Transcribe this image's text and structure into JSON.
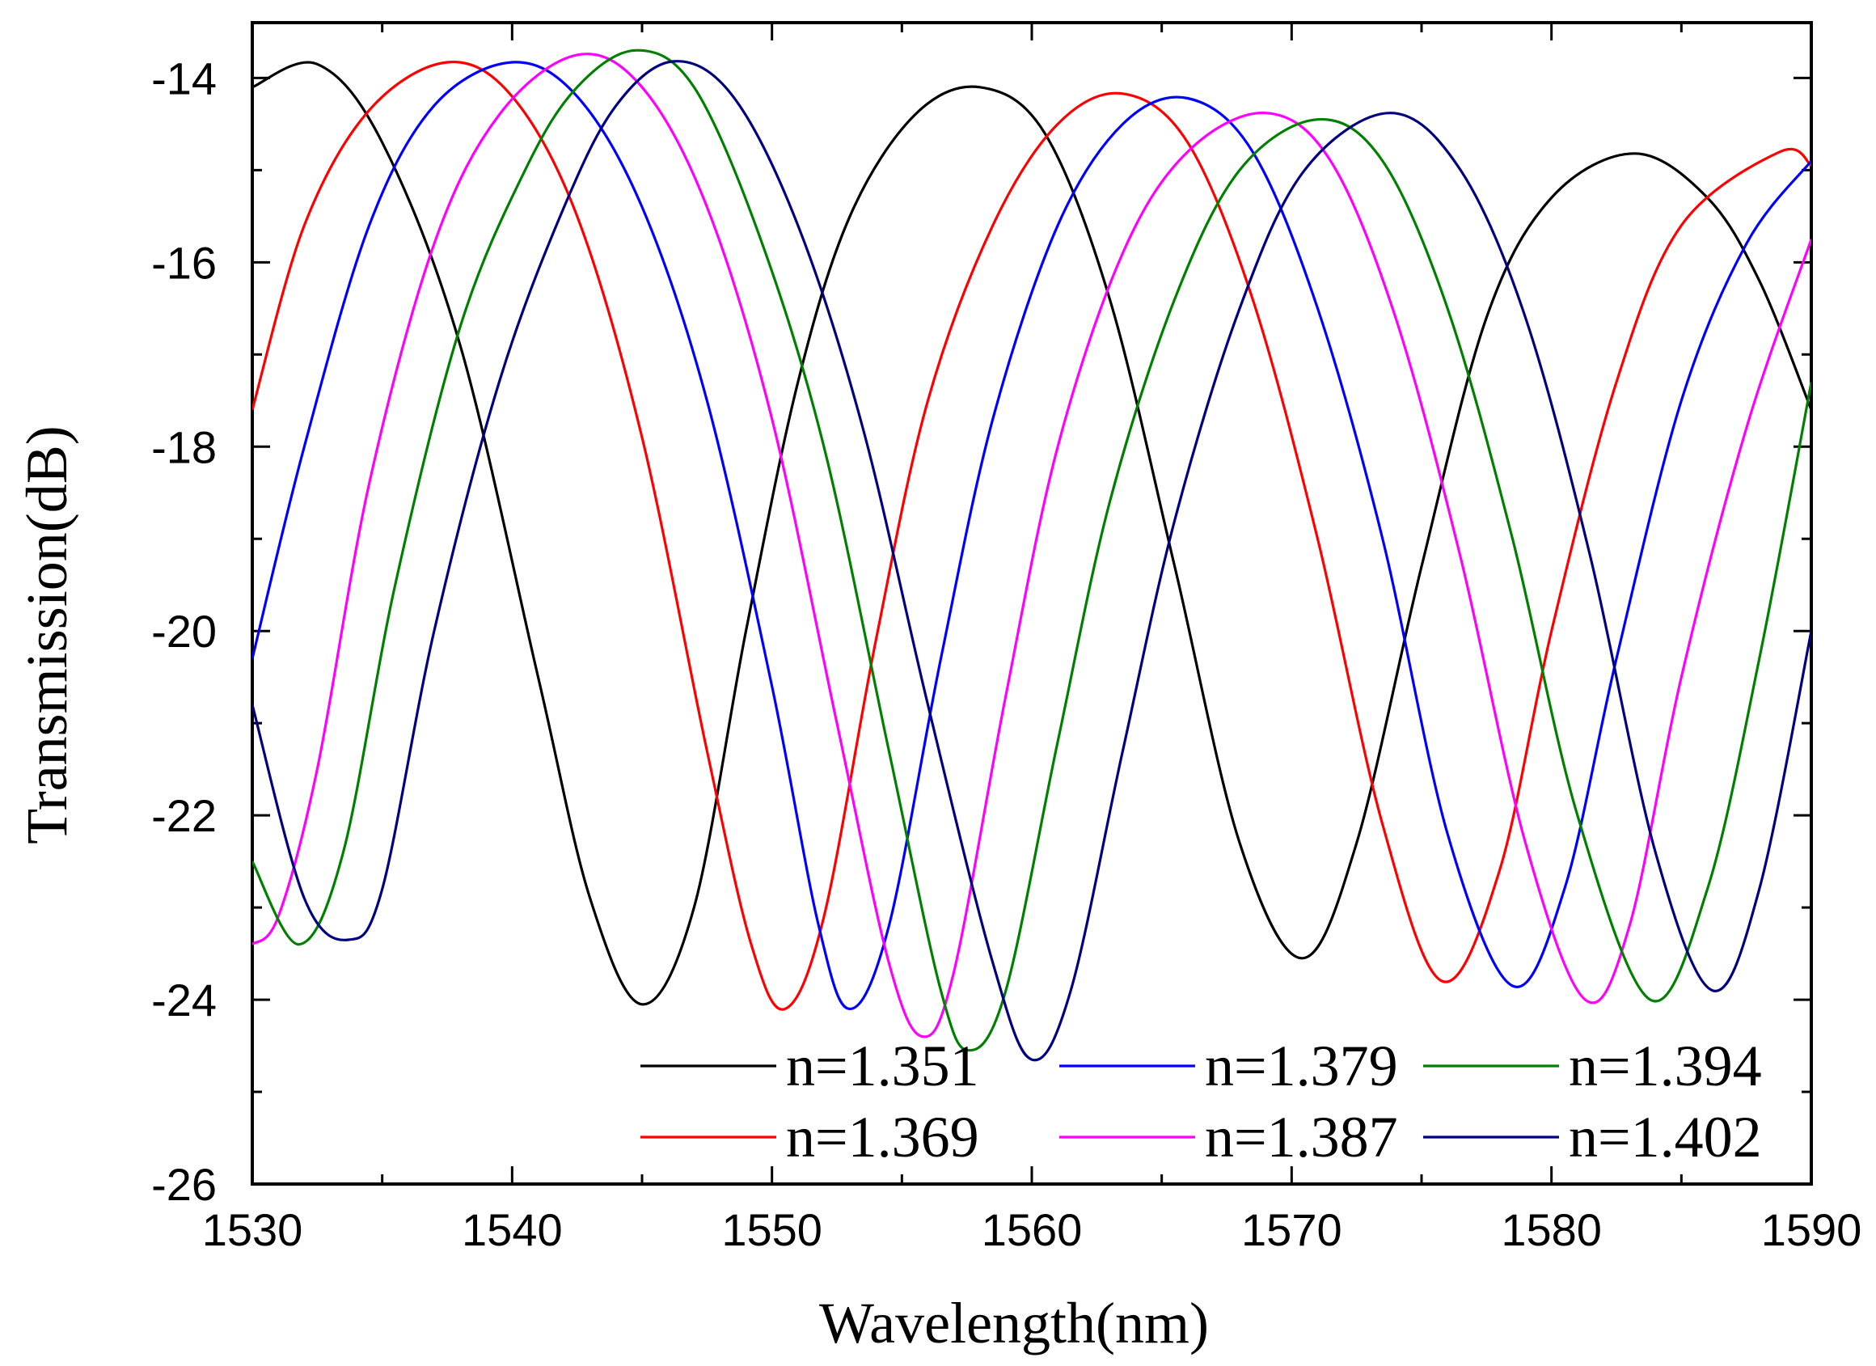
{
  "chart_data": {
    "type": "line",
    "title": "",
    "xlabel": "Wavelength(nm)",
    "ylabel": "Transmission(dB)",
    "xlim": [
      1530,
      1590
    ],
    "ylim": [
      -26,
      -13.4
    ],
    "xticks": [
      1530,
      1540,
      1550,
      1560,
      1570,
      1580,
      1590
    ],
    "xtick_labels": [
      "1530",
      "1540",
      "1550",
      "1560",
      "1570",
      "1580",
      "1590"
    ],
    "yticks": [
      -14,
      -16,
      -18,
      -20,
      -22,
      -24,
      -26
    ],
    "ytick_labels": [
      "-14",
      "-16",
      "-18",
      "-20",
      "-22",
      "-24",
      "-26"
    ],
    "grid": false,
    "legend_position": "bottom-right",
    "series": [
      {
        "name": "n=1.351",
        "color": "#000000",
        "points": [
          [
            1530,
            -14.1
          ],
          [
            1532.5,
            -13.85
          ],
          [
            1535,
            -14.7
          ],
          [
            1538,
            -16.9
          ],
          [
            1541,
            -20.5
          ],
          [
            1543,
            -22.9
          ],
          [
            1545,
            -24.05
          ],
          [
            1547,
            -23.0
          ],
          [
            1549,
            -20.0
          ],
          [
            1551,
            -17.3
          ],
          [
            1553,
            -15.5
          ],
          [
            1555.5,
            -14.4
          ],
          [
            1558,
            -14.1
          ],
          [
            1560.5,
            -14.6
          ],
          [
            1563,
            -16.4
          ],
          [
            1565.5,
            -19.3
          ],
          [
            1568,
            -22.3
          ],
          [
            1570.4,
            -23.55
          ],
          [
            1572.5,
            -22.3
          ],
          [
            1575,
            -19.3
          ],
          [
            1577.5,
            -16.6
          ],
          [
            1580,
            -15.3
          ],
          [
            1583.2,
            -14.82
          ],
          [
            1586,
            -15.3
          ],
          [
            1588,
            -16.2
          ],
          [
            1590,
            -17.6
          ]
        ]
      },
      {
        "name": "n=1.369",
        "color": "#ff0000",
        "points": [
          [
            1530,
            -17.6
          ],
          [
            1532,
            -15.6
          ],
          [
            1534.5,
            -14.35
          ],
          [
            1537.5,
            -13.83
          ],
          [
            1540,
            -14.2
          ],
          [
            1542.5,
            -15.5
          ],
          [
            1545,
            -17.9
          ],
          [
            1547.5,
            -21.3
          ],
          [
            1549.2,
            -23.4
          ],
          [
            1550.5,
            -24.1
          ],
          [
            1552,
            -23.1
          ],
          [
            1554,
            -20.1
          ],
          [
            1556,
            -17.5
          ],
          [
            1558.5,
            -15.6
          ],
          [
            1561,
            -14.5
          ],
          [
            1563.5,
            -14.17
          ],
          [
            1566,
            -14.7
          ],
          [
            1568.5,
            -16.4
          ],
          [
            1571,
            -19.0
          ],
          [
            1573.5,
            -22.1
          ],
          [
            1575.8,
            -23.8
          ],
          [
            1578,
            -22.6
          ],
          [
            1580,
            -20.0
          ],
          [
            1582.5,
            -17.3
          ],
          [
            1585,
            -15.6
          ],
          [
            1588.8,
            -14.8
          ],
          [
            1590,
            -14.95
          ]
        ]
      },
      {
        "name": "n=1.379",
        "color": "#0000ff",
        "points": [
          [
            1530,
            -20.3
          ],
          [
            1532,
            -18.0
          ],
          [
            1534.5,
            -15.6
          ],
          [
            1537,
            -14.3
          ],
          [
            1540,
            -13.83
          ],
          [
            1542.5,
            -14.2
          ],
          [
            1545,
            -15.4
          ],
          [
            1547.5,
            -17.5
          ],
          [
            1550,
            -20.6
          ],
          [
            1551.8,
            -23.2
          ],
          [
            1553,
            -24.1
          ],
          [
            1554.5,
            -23.2
          ],
          [
            1556.5,
            -20.3
          ],
          [
            1558.5,
            -17.7
          ],
          [
            1561,
            -15.6
          ],
          [
            1563.5,
            -14.5
          ],
          [
            1566,
            -14.22
          ],
          [
            1568.5,
            -14.8
          ],
          [
            1571,
            -16.5
          ],
          [
            1573.5,
            -19.0
          ],
          [
            1576,
            -22.2
          ],
          [
            1578.5,
            -23.85
          ],
          [
            1580.5,
            -22.8
          ],
          [
            1582.5,
            -20.3
          ],
          [
            1585,
            -17.5
          ],
          [
            1587.5,
            -15.8
          ],
          [
            1590,
            -14.9
          ]
        ]
      },
      {
        "name": "n=1.387",
        "color": "#ff00ff",
        "points": [
          [
            1530,
            -23.4
          ],
          [
            1531,
            -23.1
          ],
          [
            1532.5,
            -21.5
          ],
          [
            1534.5,
            -18.4
          ],
          [
            1537,
            -15.8
          ],
          [
            1539.5,
            -14.4
          ],
          [
            1542.5,
            -13.75
          ],
          [
            1545,
            -14.1
          ],
          [
            1547.5,
            -15.4
          ],
          [
            1550,
            -17.7
          ],
          [
            1552.5,
            -21.0
          ],
          [
            1554.5,
            -23.6
          ],
          [
            1555.8,
            -24.4
          ],
          [
            1557,
            -23.7
          ],
          [
            1559,
            -20.7
          ],
          [
            1561,
            -18.0
          ],
          [
            1563.5,
            -15.9
          ],
          [
            1566,
            -14.8
          ],
          [
            1569,
            -14.38
          ],
          [
            1571.5,
            -14.9
          ],
          [
            1574,
            -16.6
          ],
          [
            1576.5,
            -19.2
          ],
          [
            1579,
            -22.3
          ],
          [
            1581.3,
            -24.0
          ],
          [
            1583,
            -23.2
          ],
          [
            1585,
            -20.5
          ],
          [
            1587.5,
            -17.8
          ],
          [
            1590,
            -15.75
          ]
        ]
      },
      {
        "name": "n=1.394",
        "color": "#008000",
        "points": [
          [
            1530,
            -22.5
          ],
          [
            1531.8,
            -23.4
          ],
          [
            1533.5,
            -22.4
          ],
          [
            1535.5,
            -19.5
          ],
          [
            1538,
            -16.7
          ],
          [
            1540.5,
            -15.0
          ],
          [
            1542.5,
            -14.1
          ],
          [
            1544.8,
            -13.7
          ],
          [
            1547,
            -14.1
          ],
          [
            1549.5,
            -15.7
          ],
          [
            1552,
            -18.0
          ],
          [
            1554.5,
            -21.3
          ],
          [
            1556.5,
            -23.9
          ],
          [
            1557.6,
            -24.55
          ],
          [
            1559,
            -23.9
          ],
          [
            1561,
            -21.2
          ],
          [
            1563,
            -18.6
          ],
          [
            1565.5,
            -16.4
          ],
          [
            1568,
            -15.0
          ],
          [
            1571,
            -14.45
          ],
          [
            1573.5,
            -14.9
          ],
          [
            1576,
            -16.5
          ],
          [
            1578.5,
            -19.0
          ],
          [
            1581,
            -22.0
          ],
          [
            1583.8,
            -24.0
          ],
          [
            1586,
            -22.8
          ],
          [
            1588,
            -20.3
          ],
          [
            1590,
            -17.3
          ]
        ]
      },
      {
        "name": "n=1.402",
        "color": "#000080",
        "points": [
          [
            1530,
            -20.8
          ],
          [
            1532,
            -22.9
          ],
          [
            1533.7,
            -23.35
          ],
          [
            1535,
            -22.8
          ],
          [
            1537,
            -20.0
          ],
          [
            1539.5,
            -17.3
          ],
          [
            1542,
            -15.4
          ],
          [
            1544,
            -14.3
          ],
          [
            1546.2,
            -13.82
          ],
          [
            1548.5,
            -14.2
          ],
          [
            1551,
            -15.6
          ],
          [
            1553.5,
            -17.8
          ],
          [
            1556,
            -20.8
          ],
          [
            1558.5,
            -23.6
          ],
          [
            1560,
            -24.65
          ],
          [
            1561.5,
            -23.9
          ],
          [
            1563.5,
            -21.3
          ],
          [
            1565.5,
            -18.8
          ],
          [
            1568,
            -16.5
          ],
          [
            1570.5,
            -15.0
          ],
          [
            1573.8,
            -14.38
          ],
          [
            1576.5,
            -15.0
          ],
          [
            1579,
            -16.6
          ],
          [
            1581.5,
            -19.2
          ],
          [
            1584,
            -22.4
          ],
          [
            1586.2,
            -23.9
          ],
          [
            1588,
            -22.8
          ],
          [
            1590,
            -20.0
          ]
        ]
      }
    ]
  }
}
